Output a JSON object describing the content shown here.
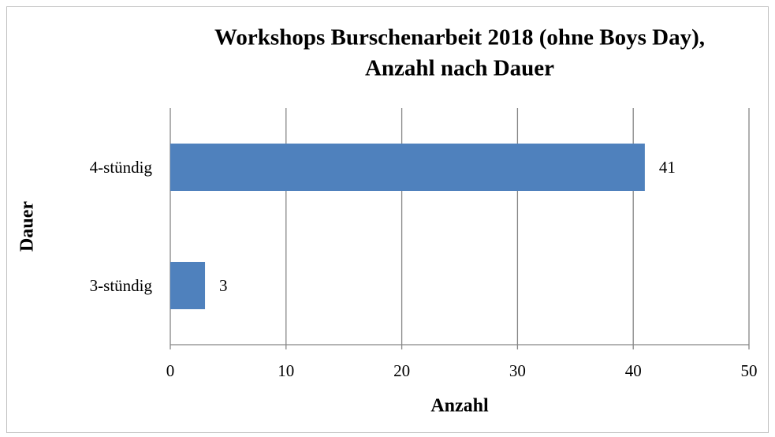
{
  "chart_data": {
    "type": "bar",
    "orientation": "horizontal",
    "title": [
      "Workshops Burschenarbeit 2018 (ohne Boys Day),",
      "Anzahl nach Dauer"
    ],
    "xlabel": "Anzahl",
    "ylabel": "Dauer",
    "categories": [
      "3-stündig",
      "4-stündig"
    ],
    "values": [
      3,
      41
    ],
    "color": "#4f81bd",
    "xlim": [
      0,
      50
    ],
    "xticks": [
      0,
      10,
      20,
      30,
      40,
      50
    ],
    "grid": true
  }
}
